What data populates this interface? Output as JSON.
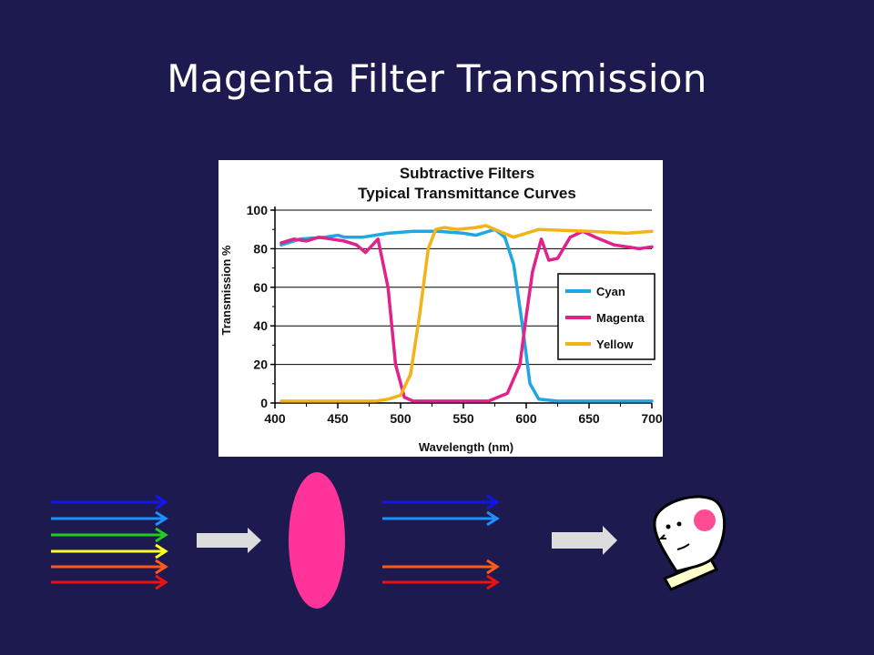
{
  "slide": {
    "title": "Magenta Filter Transmission"
  },
  "chart_data": {
    "type": "line",
    "title": "Subtractive Filters",
    "subtitle": "Typical Transmittance Curves",
    "xlabel": "Wavelength (nm)",
    "ylabel": "Transmission %",
    "xlim": [
      400,
      700
    ],
    "ylim": [
      0,
      100
    ],
    "xticks": [
      400,
      450,
      500,
      550,
      600,
      650,
      700
    ],
    "yticks": [
      0,
      20,
      40,
      60,
      80,
      100
    ],
    "grid": true,
    "legend_position": "right",
    "series": [
      {
        "name": "Cyan",
        "color": "#1ea7e1",
        "x": [
          405,
          420,
          440,
          450,
          455,
          470,
          490,
          510,
          530,
          550,
          560,
          575,
          583,
          590,
          597,
          603,
          610,
          625,
          650,
          680,
          700
        ],
        "y": [
          82,
          85,
          86,
          87,
          86,
          86,
          88,
          89,
          89,
          88,
          87,
          90,
          86,
          72,
          40,
          10,
          2,
          1,
          1,
          1,
          1
        ]
      },
      {
        "name": "Magenta",
        "color": "#e0228a",
        "x": [
          405,
          415,
          425,
          435,
          445,
          455,
          465,
          472,
          482,
          490,
          496,
          503,
          510,
          520,
          540,
          570,
          585,
          595,
          600,
          605,
          612,
          618,
          625,
          635,
          645,
          655,
          670,
          690,
          700
        ],
        "y": [
          83,
          85,
          84,
          86,
          85,
          84,
          82,
          78,
          85,
          60,
          20,
          3,
          1,
          1,
          1,
          1,
          5,
          20,
          45,
          68,
          85,
          74,
          75,
          86,
          89,
          86,
          82,
          80,
          81
        ]
      },
      {
        "name": "Yellow",
        "color": "#f2b316",
        "x": [
          405,
          450,
          480,
          490,
          500,
          508,
          515,
          522,
          528,
          535,
          545,
          560,
          568,
          575,
          590,
          610,
          650,
          680,
          700
        ],
        "y": [
          1,
          1,
          1,
          2,
          4,
          15,
          45,
          80,
          90,
          91,
          90,
          91,
          92,
          90,
          86,
          90,
          89,
          88,
          89
        ]
      }
    ]
  },
  "diagram": {
    "input_rays": [
      "#1414e6",
      "#1e90ff",
      "#22cc22",
      "#ffff22",
      "#ff5a1a",
      "#ee1111"
    ],
    "output_rays": [
      "#1414e6",
      "#1e90ff",
      "#ff5a1a",
      "#ee1111"
    ],
    "filter_color": "#ff3399",
    "arrow_color": "#dcdcdc"
  }
}
